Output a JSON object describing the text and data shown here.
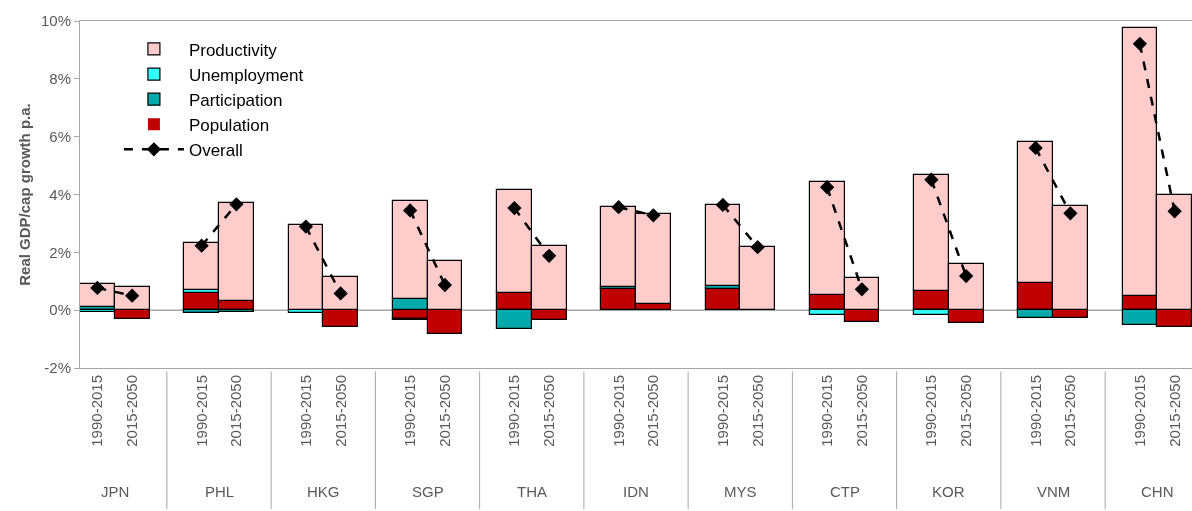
{
  "chart_data": {
    "type": "bar",
    "stacked": true,
    "ylabel": "Real GDP/cap growth p.a.",
    "categories": [
      "1990-2015",
      "2015-2050",
      null,
      "1990-2015",
      "2015-2050",
      null,
      "1990-2015",
      "2015-2050",
      null,
      "1990-2015",
      "2015-2050",
      null,
      "1990-2015",
      "2015-2050",
      null,
      "1990-2015",
      "2015-2050",
      null,
      "1990-2015",
      "2015-2050",
      null,
      "1990-2015",
      "2015-2050",
      null,
      "1990-2015",
      "2015-2050",
      null,
      "1990-2015",
      "2015-2050",
      null,
      "1990-2015",
      "2015-2050"
    ],
    "annotations": [
      "JPN",
      "PHL",
      "HKG",
      "SGP",
      "THA",
      "IDN",
      "MYS",
      "CTP",
      "KOR",
      "VNM",
      "CHN"
    ],
    "series": [
      {
        "name": "Overall",
        "type": "line",
        "color": "#000000",
        "marker": "diamond",
        "line_style": "dashed",
        "values": [
          0.77,
          0.5,
          null,
          2.23,
          3.66,
          null,
          2.89,
          0.58,
          null,
          3.45,
          0.87,
          null,
          3.53,
          1.88,
          null,
          3.56,
          3.28,
          null,
          3.64,
          2.18,
          null,
          4.25,
          0.72,
          null,
          4.51,
          1.18,
          null,
          5.61,
          3.35,
          null,
          9.21,
          3.42
        ]
      },
      {
        "name": "Population",
        "color": "#c00000",
        "values": [
          null,
          -0.3,
          null,
          0.61,
          0.32,
          null,
          0,
          -0.58,
          null,
          -0.29,
          -0.84,
          null,
          0.61,
          -0.35,
          null,
          0.72,
          0.21,
          null,
          0.72,
          0,
          null,
          0.53,
          -0.42,
          null,
          0.66,
          -0.44,
          null,
          0.95,
          -0.27,
          null,
          0.5,
          -0.58
        ]
      },
      {
        "name": "Participation",
        "color": "#00aaaa",
        "values": [
          0.1,
          0,
          null,
          -0.1,
          -0.06,
          null,
          null,
          0,
          null,
          0.37,
          0,
          null,
          -0.64,
          0,
          null,
          0.07,
          0,
          null,
          0.1,
          0,
          null,
          0,
          0,
          null,
          0,
          0,
          null,
          -0.27,
          0,
          null,
          -0.5,
          0
        ]
      },
      {
        "name": "Unemployment",
        "color": "#33ffff",
        "values": [
          -0.05,
          0,
          null,
          0.08,
          0,
          null,
          -0.1,
          0,
          null,
          -0.06,
          0,
          null,
          0,
          0,
          null,
          0,
          0,
          null,
          0,
          0,
          null,
          -0.17,
          0,
          null,
          -0.15,
          0,
          null,
          0,
          0,
          null,
          0,
          0
        ]
      },
      {
        "name": "Productivity",
        "color": "#ffcccc",
        "values": [
          0.8,
          0.81,
          null,
          1.65,
          3.38,
          null,
          2.93,
          1.14,
          null,
          3.4,
          1.71,
          null,
          3.56,
          2.22,
          null,
          2.78,
          3.1,
          null,
          2.81,
          2.18,
          null,
          3.9,
          1.12,
          null,
          4.01,
          1.61,
          null,
          4.88,
          3.6,
          null,
          9.25,
          3.98
        ]
      }
    ],
    "ylim": [
      -2,
      10
    ],
    "yticks": [
      {
        "value": -2,
        "label": "-2%"
      },
      {
        "value": 0,
        "label": "0%"
      },
      {
        "value": 2,
        "label": "2%"
      },
      {
        "value": 4,
        "label": "4%"
      },
      {
        "value": 6,
        "label": "6%"
      },
      {
        "value": 8,
        "label": "8%"
      },
      {
        "value": 10,
        "label": "10%"
      }
    ],
    "ref_lines": [
      {
        "axis": "y",
        "value": 0,
        "color": "#a6a6a6"
      }
    ],
    "legend": "top left"
  }
}
